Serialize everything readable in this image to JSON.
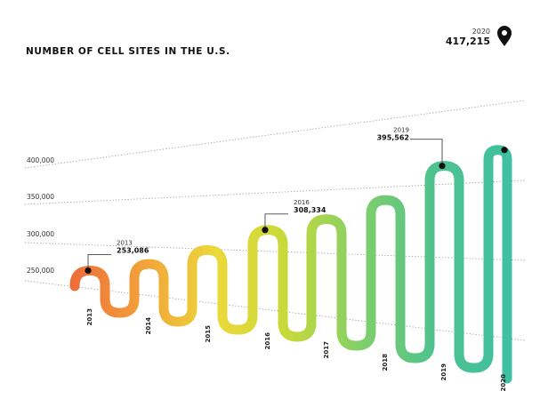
{
  "title": "NUMBER OF CELL SITES IN THE U.S.",
  "colors": {
    "gradient": [
      "#ef6c3a",
      "#f2a33a",
      "#ecd93a",
      "#c6d93a",
      "#7fcf6a",
      "#4fc28f",
      "#3fc0a0"
    ],
    "gridline": "#9a9a9a",
    "marker": "#111111"
  },
  "chart_data": {
    "type": "line",
    "title": "NUMBER OF CELL SITES IN THE U.S.",
    "x": [
      "2013",
      "2014",
      "2015",
      "2016",
      "2017",
      "2018",
      "2019",
      "2020"
    ],
    "values": [
      253086,
      262000,
      281000,
      308334,
      323000,
      349000,
      395562,
      417215
    ],
    "ylabel": "",
    "xlabel": "",
    "ylim": [
      250000,
      400000
    ],
    "yticks": [
      "250,000",
      "300,000",
      "350,000",
      "400,000"
    ],
    "grid": true,
    "callouts": [
      {
        "year": "2013",
        "value": "253,086"
      },
      {
        "year": "2016",
        "value": "308,334"
      },
      {
        "year": "2019",
        "value": "395,562"
      },
      {
        "year": "2020",
        "value": "417,215"
      }
    ]
  }
}
